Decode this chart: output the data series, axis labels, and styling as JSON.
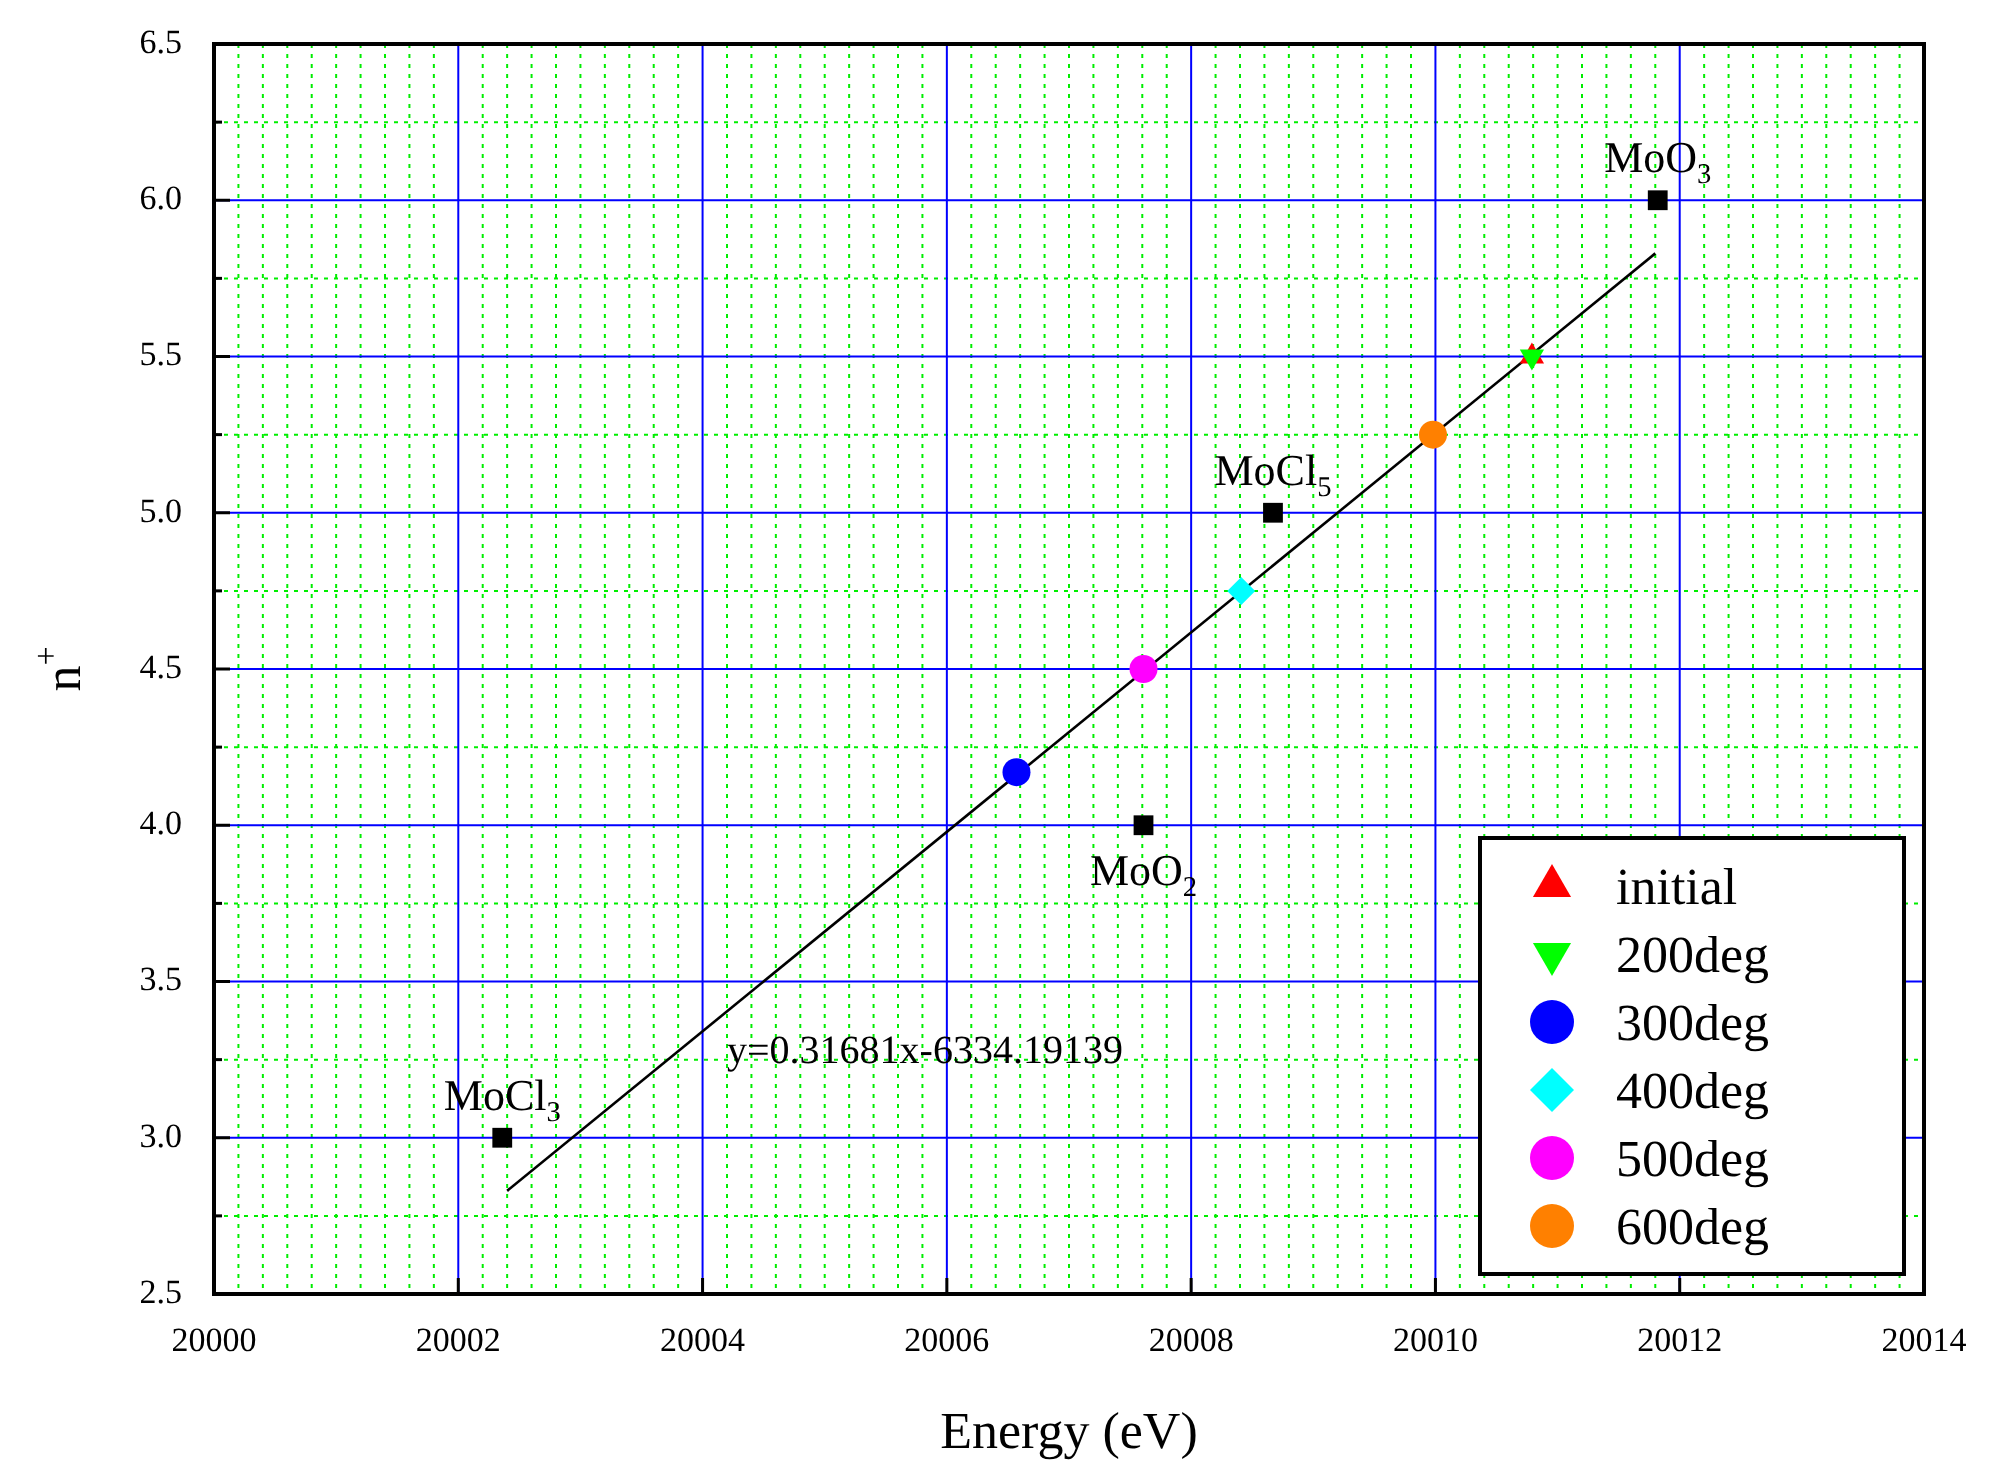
{
  "chart_data": {
    "type": "scatter",
    "xlabel": "Energy (eV)",
    "ylabel": "n$^{+}$",
    "xlim": [
      20000,
      20014
    ],
    "xticks": [
      20000,
      {
        "value": 20000.2,
        "label": null
      },
      {
        "value": 20000.4,
        "label": null
      },
      {
        "value": 20000.6,
        "label": null
      },
      {
        "value": 20000.8,
        "label": null
      },
      {
        "value": 20001,
        "label": null
      },
      {
        "value": 20001.2,
        "label": null
      },
      {
        "value": 20001.4,
        "label": null
      },
      {
        "value": 20001.6,
        "label": null
      },
      {
        "value": 20001.8,
        "label": null
      },
      20002,
      {
        "value": 20002.2,
        "label": null
      },
      {
        "value": 20002.4,
        "label": null
      },
      {
        "value": 20002.6,
        "label": null
      },
      {
        "value": 20002.8,
        "label": null
      },
      {
        "value": 20003,
        "label": null
      },
      {
        "value": 20003.2,
        "label": null
      },
      {
        "value": 20003.4,
        "label": null
      },
      {
        "value": 20003.6,
        "label": null
      },
      {
        "value": 20003.8,
        "label": null
      },
      20004,
      {
        "value": 20004.2,
        "label": null
      },
      {
        "value": 20004.4,
        "label": null
      },
      {
        "value": 20004.6,
        "label": null
      },
      {
        "value": 20004.8,
        "label": null
      },
      {
        "value": 20005,
        "label": null
      },
      {
        "value": 20005.2,
        "label": null
      },
      {
        "value": 20005.4,
        "label": null
      },
      {
        "value": 20005.6,
        "label": null
      },
      {
        "value": 20005.8,
        "label": null
      },
      20006,
      {
        "value": 20006.2,
        "label": null
      },
      {
        "value": 20006.4,
        "label": null
      },
      {
        "value": 20006.6,
        "label": null
      },
      {
        "value": 20006.8,
        "label": null
      },
      {
        "value": 20007,
        "label": null
      },
      {
        "value": 20007.2,
        "label": null
      },
      {
        "value": 20007.4,
        "label": null
      },
      {
        "value": 20007.6,
        "label": null
      },
      {
        "value": 20007.8,
        "label": null
      },
      20008,
      {
        "value": 20008.2,
        "label": null
      },
      {
        "value": 20008.4,
        "label": null
      },
      {
        "value": 20008.6,
        "label": null
      },
      {
        "value": 20008.8,
        "label": null
      },
      {
        "value": 20009,
        "label": null
      },
      {
        "value": 20009.2,
        "label": null
      },
      {
        "value": 20009.4,
        "label": null
      },
      {
        "value": 20009.6,
        "label": null
      },
      {
        "value": 20009.8,
        "label": null
      },
      20010,
      {
        "value": 20010.2,
        "label": null
      },
      {
        "value": 20010.4,
        "label": null
      },
      {
        "value": 20010.6,
        "label": null
      },
      {
        "value": 20010.8,
        "label": null
      },
      {
        "value": 20011,
        "label": null
      },
      {
        "value": 20011.2,
        "label": null
      },
      {
        "value": 20011.4,
        "label": null
      },
      {
        "value": 20011.6,
        "label": null
      },
      {
        "value": 20011.8,
        "label": null
      },
      20012,
      {
        "value": 20012.2,
        "label": null
      },
      {
        "value": 20012.4,
        "label": null
      },
      {
        "value": 20012.6,
        "label": null
      },
      {
        "value": 20012.8,
        "label": null
      },
      {
        "value": 20013,
        "label": null
      },
      {
        "value": 20013.2,
        "label": null
      },
      {
        "value": 20013.4,
        "label": null
      },
      {
        "value": 20013.6,
        "label": null
      },
      {
        "value": 20013.8,
        "label": null
      },
      20014
    ],
    "ylim": [
      2.5,
      6.5
    ],
    "yticks": [
      {
        "value": 2.5,
        "label": "2.5"
      },
      {
        "value": 2.75,
        "label": null
      },
      {
        "value": 3,
        "label": "3.0"
      },
      {
        "value": 3.25,
        "label": null
      },
      {
        "value": 3.5,
        "label": "3.5"
      },
      {
        "value": 3.75,
        "label": null
      },
      {
        "value": 4,
        "label": "4.0"
      },
      {
        "value": 4.25,
        "label": null
      },
      {
        "value": 4.5,
        "label": "4.5"
      },
      {
        "value": 4.75,
        "label": null
      },
      {
        "value": 5,
        "label": "5.0"
      },
      {
        "value": 5.25,
        "label": null
      },
      {
        "value": 5.5,
        "label": "5.5"
      },
      {
        "value": 5.75,
        "label": null
      },
      {
        "value": 6,
        "label": "6.0"
      },
      {
        "value": 6.25,
        "label": null
      },
      {
        "value": 6.5,
        "label": "6.5"
      }
    ],
    "grid": true,
    "legend": "bottom right",
    "series": [
      {
        "type": "line",
        "color": "#000000",
        "marker": "none",
        "x": [
          20002.4,
          20011.8
        ],
        "values": [
          2.83,
          5.83
        ]
      },
      {
        "color": "#000000",
        "marker": "square",
        "x": [
          20002.36,
          20007.61,
          20008.67,
          20011.82
        ],
        "values": [
          3,
          4,
          5,
          6
        ]
      },
      {
        "name": "initial",
        "color": "#ff0000",
        "marker": "triangle",
        "x": [
          20010.79
        ],
        "values": [
          5.5
        ]
      },
      {
        "name": "200deg",
        "color": "#00ff00",
        "marker": "triangle-down",
        "x": [
          20010.79
        ],
        "values": [
          5.5
        ]
      },
      {
        "name": "300deg",
        "color": "#0000ff",
        "marker": "circle",
        "x": [
          20006.57
        ],
        "values": [
          4.17
        ]
      },
      {
        "name": "400deg",
        "color": "#00ffff",
        "marker": "diamond",
        "x": [
          20008.41
        ],
        "values": [
          4.75
        ]
      },
      {
        "name": "500deg",
        "color": "#ff00ff",
        "x": [
          20007.61
        ],
        "values": [
          4.5
        ]
      },
      {
        "name": "600deg",
        "color": "#ff8000",
        "x": [
          20009.98
        ],
        "values": [
          5.25
        ]
      }
    ],
    "annotations": [
      {
        "text": "MoCl$_{3}$",
        "x": 20002.36,
        "y": 3
      },
      {
        "text": "MoO$_{2}$",
        "x": 20007.61,
        "y": 4
      },
      {
        "text": "MoCl$_{5}$",
        "x": 20008.67,
        "y": 5
      },
      {
        "text": "MoO$_{3}$",
        "x": 20011.82,
        "y": 6
      },
      "y=0.31681x-6334.19139"
    ]
  }
}
